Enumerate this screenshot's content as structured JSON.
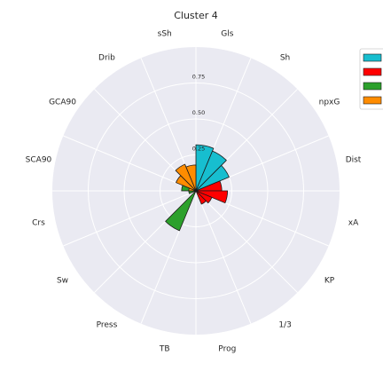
{
  "chart_data": {
    "type": "polar-bar",
    "title": "Cluster 4",
    "categories": [
      "Gls",
      "Sh",
      "npxG",
      "Dist",
      "xA",
      "KP",
      "1/3",
      "Prog",
      "TB",
      "Press",
      "Sw",
      "Crs",
      "SCA90",
      "GCA90",
      "Drib",
      "sSh"
    ],
    "radial_ticks": [
      0.25,
      0.5,
      0.75
    ],
    "radial_tick_labels": [
      "0.25",
      "0.50",
      "0.75"
    ],
    "rmax": 1.0,
    "grid": true,
    "legend": "top-right",
    "series": [
      {
        "color": "#17becf",
        "values": [
          0.32,
          0.3,
          0.25,
          0.0,
          0.0,
          0.0,
          0.0,
          0.0,
          0.0,
          0.0,
          0.0,
          0.0,
          0.0,
          0.0,
          0.0,
          0.0
        ]
      },
      {
        "color": "#ff0000",
        "values": [
          0.0,
          0.0,
          0.0,
          0.18,
          0.22,
          0.12,
          0.1,
          0.0,
          0.0,
          0.0,
          0.0,
          0.0,
          0.0,
          0.0,
          0.0,
          0.0
        ]
      },
      {
        "color": "#2ca02c",
        "values": [
          0.0,
          0.0,
          0.0,
          0.0,
          0.0,
          0.0,
          0.0,
          0.0,
          0.0,
          0.3,
          0.0,
          0.05,
          0.1,
          0.0,
          0.0,
          0.0
        ]
      },
      {
        "color": "#ff8c00",
        "values": [
          0.0,
          0.0,
          0.0,
          0.0,
          0.0,
          0.0,
          0.0,
          0.0,
          0.0,
          0.0,
          0.0,
          0.0,
          0.05,
          0.15,
          0.2,
          0.18
        ]
      }
    ]
  }
}
